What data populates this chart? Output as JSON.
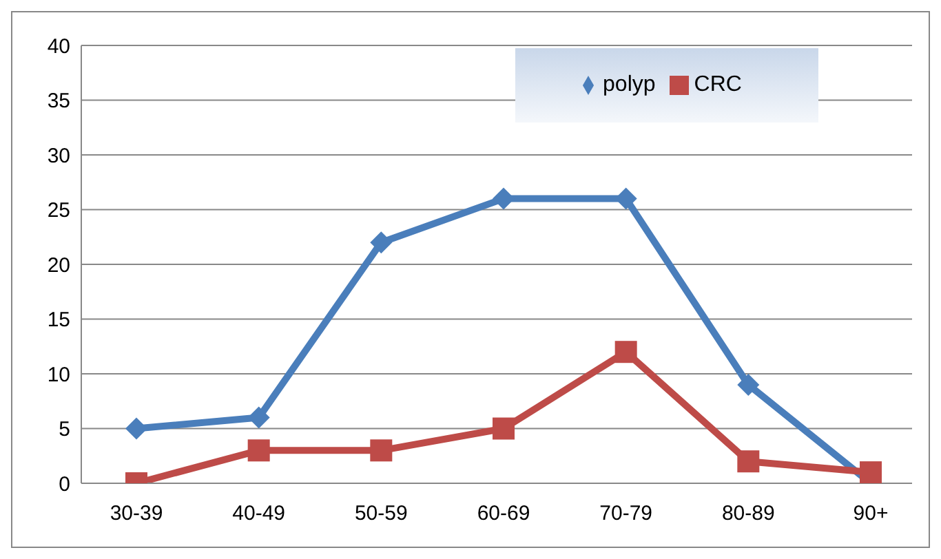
{
  "chart_data": {
    "type": "line",
    "categories": [
      "30-39",
      "40-49",
      "50-59",
      "60-69",
      "70-79",
      "80-89",
      "90+"
    ],
    "series": [
      {
        "name": "polyp",
        "color": "#4a7ebb",
        "marker": "diamond",
        "values": [
          5,
          6,
          22,
          26,
          26,
          9,
          0
        ]
      },
      {
        "name": "CRC",
        "color": "#be4b48",
        "marker": "square",
        "values": [
          0,
          3,
          3,
          5,
          12,
          2,
          1
        ]
      }
    ],
    "ylim": [
      0,
      40
    ],
    "yticks": [
      0,
      5,
      10,
      15,
      20,
      25,
      30,
      35,
      40
    ],
    "grid": "y",
    "legend": "top right",
    "line_style": "solid"
  }
}
